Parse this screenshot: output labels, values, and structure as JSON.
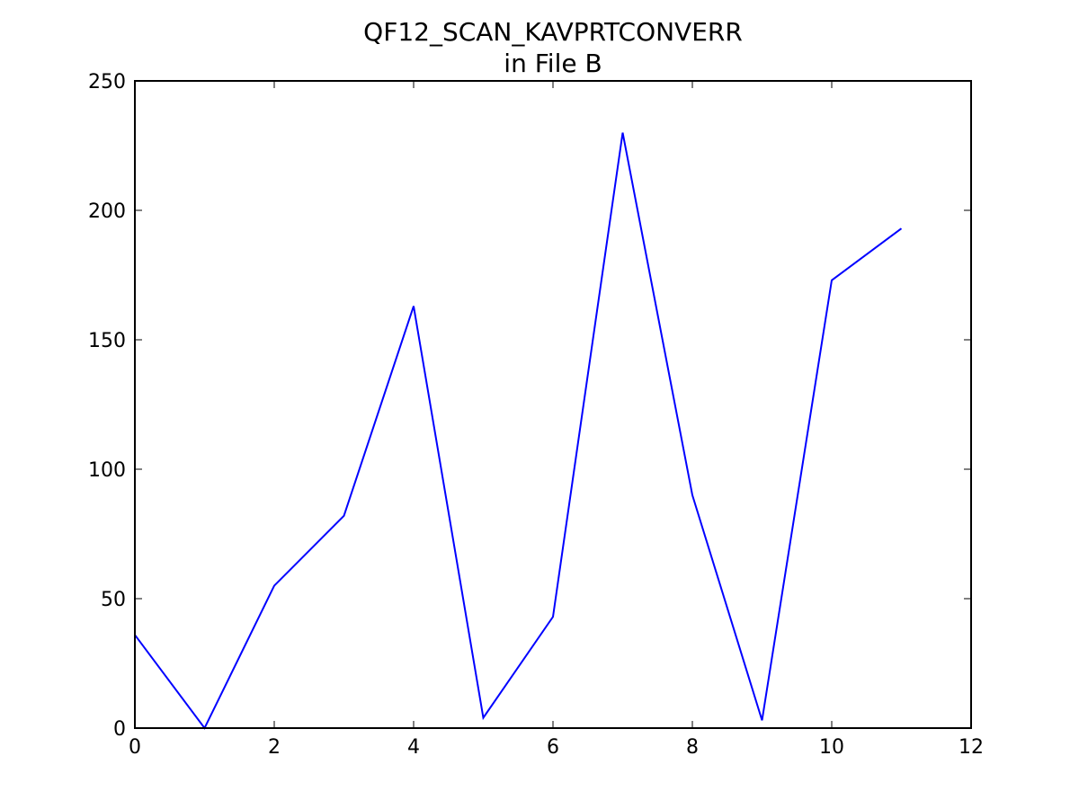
{
  "chart_data": {
    "type": "line",
    "title": "QF12_SCAN_KAVPRTCONVERR",
    "subtitle": "in File B",
    "x": [
      0,
      1,
      2,
      3,
      4,
      5,
      6,
      7,
      8,
      9,
      10,
      11
    ],
    "values": [
      36,
      0,
      55,
      82,
      163,
      4,
      43,
      230,
      90,
      3,
      173,
      193
    ],
    "color": "#0000ff",
    "xlim": [
      0,
      12
    ],
    "xticks": [
      0,
      2,
      4,
      6,
      8,
      10,
      12
    ],
    "ylim": [
      0,
      250
    ],
    "yticks": [
      0,
      50,
      100,
      150,
      200,
      250
    ],
    "grid": false
  }
}
